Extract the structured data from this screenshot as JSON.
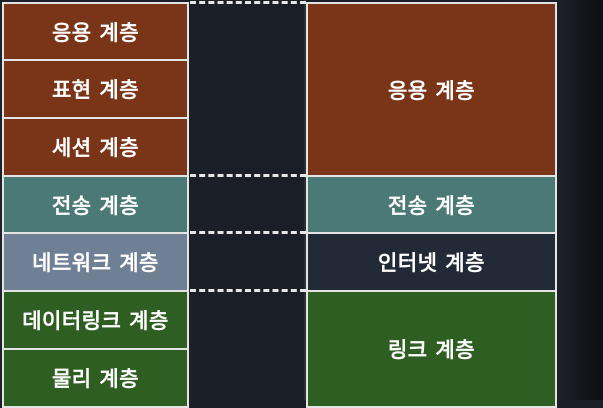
{
  "osi_layers": [
    {
      "label": "응용 계층",
      "color": "#7a3519"
    },
    {
      "label": "표현 계층",
      "color": "#7a3519"
    },
    {
      "label": "세션 계층",
      "color": "#7a3519"
    },
    {
      "label": "전송 계층",
      "color": "#4b7a76"
    },
    {
      "label": "네트워크 계층",
      "color": "#6f7f94"
    },
    {
      "label": "데이터링크 계층",
      "color": "#2f5e22"
    },
    {
      "label": "물리 계층",
      "color": "#2f5e22"
    }
  ],
  "tcpip_layers": [
    {
      "label": "응용 계층",
      "color": "#7a3519"
    },
    {
      "label": "전송 계층",
      "color": "#4b7a76"
    },
    {
      "label": "인터넷 계층",
      "color": "#232a37"
    },
    {
      "label": "링크 계층",
      "color": "#2f5e22"
    }
  ]
}
